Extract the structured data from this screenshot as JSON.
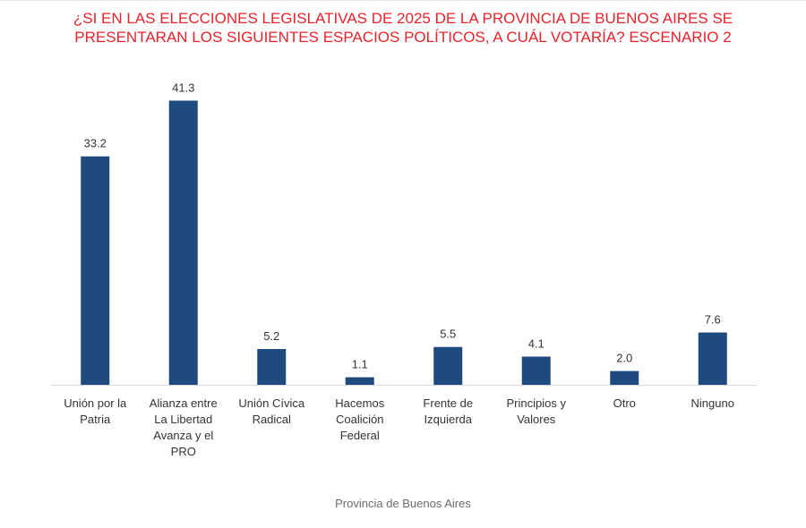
{
  "chart_data": {
    "type": "bar",
    "title_lines": [
      "¿SI EN LAS ELECCIONES LEGISLATIVAS DE 2025 DE LA PROVINCIA DE BUENOS AIRES SE",
      "PRESENTARAN LOS SIGUIENTES ESPACIOS POLÍTICOS, A CUÁL VOTARÍA? ESCENARIO 2"
    ],
    "categories": [
      [
        "Unión por la",
        "Patria"
      ],
      [
        "Alianza entre",
        "La Libertad",
        "Avanza y el",
        "PRO"
      ],
      [
        "Unión Cívica",
        "Radical"
      ],
      [
        "Hacemos",
        "Coalición",
        "Federal"
      ],
      [
        "Frente de",
        "Izquierda"
      ],
      [
        "Principios y",
        "Valores"
      ],
      [
        "Otro"
      ],
      [
        "Ninguno"
      ]
    ],
    "values": [
      33.2,
      41.3,
      5.2,
      1.1,
      5.5,
      4.1,
      2.0,
      7.6
    ],
    "value_labels": [
      "33.2",
      "41.3",
      "5.2",
      "1.1",
      "5.5",
      "4.1",
      "2.0",
      "7.6"
    ],
    "xlabel": "Provincia de Buenos Aires",
    "ylabel": "",
    "ylim": [
      0,
      45
    ],
    "grid": false,
    "bar_color": "#1f4a7e",
    "title_color": "#e8232a"
  }
}
